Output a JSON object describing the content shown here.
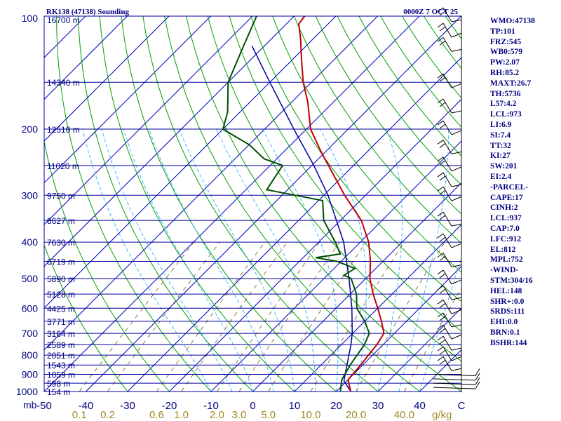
{
  "chart_data": {
    "type": "skew-t sounding",
    "title_left": "RK138 (47138) Sounding",
    "title_right": "0000Z  7 OCT 25",
    "units_label": "mb",
    "mixing_ratio_unit": "g/kg",
    "pressure_levels": [
      100,
      200,
      300,
      400,
      500,
      600,
      700,
      800,
      900,
      1000
    ],
    "pressure_range": [
      100,
      1000
    ],
    "temperature_ticks": [
      "-50",
      "-40",
      "-30",
      "-20",
      "-10",
      "0",
      "10",
      "20",
      "30",
      "40",
      "C"
    ],
    "temperature_range_at_1000mb": [
      -50,
      50
    ],
    "mixing_ratio_ticks": [
      "0.1",
      "0.2",
      "0.6",
      "1.0",
      "2.0",
      "3.0",
      "5.0",
      "10.0",
      "20.0",
      "40.0"
    ],
    "mixing_ratio_values": [
      0.1,
      0.2,
      0.6,
      1.0,
      2.0,
      3.0,
      5.0,
      10.0,
      20.0,
      40.0
    ],
    "heights": [
      {
        "label": "16700 m",
        "p": 100
      },
      {
        "label": "14340 m",
        "p": 150
      },
      {
        "label": "12510 m",
        "p": 200
      },
      {
        "label": "11020 m",
        "p": 250
      },
      {
        "label": "9750 m",
        "p": 300
      },
      {
        "label": "8627 m",
        "p": 350
      },
      {
        "label": "7630 m",
        "p": 400
      },
      {
        "label": "6719 m",
        "p": 450
      },
      {
        "label": "5890 m",
        "p": 500
      },
      {
        "label": "5128 m",
        "p": 550
      },
      {
        "label": "4425 m",
        "p": 600
      },
      {
        "label": "3771 m",
        "p": 650
      },
      {
        "label": "3164 m",
        "p": 700
      },
      {
        "label": "2589 m",
        "p": 750
      },
      {
        "label": "2051 m",
        "p": 800
      },
      {
        "label": "1543 m",
        "p": 850
      },
      {
        "label": "1059 m",
        "p": 900
      },
      {
        "label": "598 m",
        "p": 950
      },
      {
        "label": "154 m",
        "p": 1000
      }
    ],
    "temperature_profile": [
      {
        "p": 1000,
        "t": 23.5
      },
      {
        "p": 960,
        "t": 21.5
      },
      {
        "p": 930,
        "t": 20.0
      },
      {
        "p": 850,
        "t": 19.5
      },
      {
        "p": 800,
        "t": 19.0
      },
      {
        "p": 750,
        "t": 18.5
      },
      {
        "p": 700,
        "t": 17.5
      },
      {
        "p": 650,
        "t": 14.0
      },
      {
        "p": 600,
        "t": 10.0
      },
      {
        "p": 550,
        "t": 5.5
      },
      {
        "p": 500,
        "t": 1.0
      },
      {
        "p": 450,
        "t": -3.0
      },
      {
        "p": 400,
        "t": -8.0
      },
      {
        "p": 350,
        "t": -15.0
      },
      {
        "p": 300,
        "t": -25.0
      },
      {
        "p": 250,
        "t": -36.0
      },
      {
        "p": 230,
        "t": -41.0
      },
      {
        "p": 200,
        "t": -49.0
      },
      {
        "p": 170,
        "t": -56.0
      },
      {
        "p": 150,
        "t": -62.0
      },
      {
        "p": 130,
        "t": -68.0
      },
      {
        "p": 115,
        "t": -73.0
      },
      {
        "p": 105,
        "t": -77.0
      },
      {
        "p": 100,
        "t": -77.5
      }
    ],
    "dewpoint_profile": [
      {
        "p": 1000,
        "t": 21.0
      },
      {
        "p": 930,
        "t": 18.5
      },
      {
        "p": 850,
        "t": 17.0
      },
      {
        "p": 750,
        "t": 15.5
      },
      {
        "p": 700,
        "t": 14.0
      },
      {
        "p": 650,
        "t": 10.0
      },
      {
        "p": 600,
        "t": 5.0
      },
      {
        "p": 550,
        "t": 1.5
      },
      {
        "p": 500,
        "t": -3.5
      },
      {
        "p": 490,
        "t": -6.0
      },
      {
        "p": 470,
        "t": -5.0
      },
      {
        "p": 450,
        "t": -11.0
      },
      {
        "p": 440,
        "t": -17.0
      },
      {
        "p": 430,
        "t": -12.0
      },
      {
        "p": 400,
        "t": -16.0
      },
      {
        "p": 350,
        "t": -24.0
      },
      {
        "p": 310,
        "t": -29.0
      },
      {
        "p": 290,
        "t": -45.0
      },
      {
        "p": 250,
        "t": -47.0
      },
      {
        "p": 240,
        "t": -53.0
      },
      {
        "p": 220,
        "t": -60.0
      },
      {
        "p": 200,
        "t": -70.0
      },
      {
        "p": 180,
        "t": -73.0
      },
      {
        "p": 150,
        "t": -80.0
      },
      {
        "p": 120,
        "t": -85.0
      },
      {
        "p": 100,
        "t": -89.0
      }
    ],
    "parcel_profile": [
      {
        "p": 1000,
        "t": 23.5
      },
      {
        "p": 937,
        "t": 19.3
      },
      {
        "p": 850,
        "t": 16.2
      },
      {
        "p": 750,
        "t": 12.3
      },
      {
        "p": 700,
        "t": 9.9
      },
      {
        "p": 600,
        "t": 3.8
      },
      {
        "p": 500,
        "t": -4.0
      },
      {
        "p": 400,
        "t": -14.0
      },
      {
        "p": 300,
        "t": -29.0
      },
      {
        "p": 250,
        "t": -39.5
      },
      {
        "p": 200,
        "t": -53.0
      },
      {
        "p": 150,
        "t": -70.0
      },
      {
        "p": 120,
        "t": -83.0
      }
    ],
    "wind_barbs": [
      {
        "p": 100
      },
      {
        "p": 110
      },
      {
        "p": 120
      },
      {
        "p": 150
      },
      {
        "p": 175
      },
      {
        "p": 200
      },
      {
        "p": 225
      },
      {
        "p": 250
      },
      {
        "p": 275
      },
      {
        "p": 300
      },
      {
        "p": 350
      },
      {
        "p": 400
      },
      {
        "p": 450
      },
      {
        "p": 500
      },
      {
        "p": 550
      },
      {
        "p": 600
      },
      {
        "p": 650
      },
      {
        "p": 700
      },
      {
        "p": 750
      },
      {
        "p": 800
      },
      {
        "p": 850
      },
      {
        "p": 900
      },
      {
        "p": 925
      },
      {
        "p": 950
      },
      {
        "p": 975
      }
    ],
    "indices": [
      "WMO:47138",
      "TP:101",
      "FRZ:545",
      "WB0:579",
      "PW:2.07",
      "RH:85.2",
      "MAXT:26.7",
      "TH:5736",
      "L57:4.2",
      "LCL:973",
      "LI:6.9",
      "SI:7.4",
      "TT:32",
      "KI:27",
      "SW:201",
      "EI:2.4",
      "-PARCEL-",
      "CAPE:17",
      "CINH:2",
      "LCL:937",
      "CAP:7.0",
      "LFC:912",
      "EL:812",
      "MPL:752",
      "-WIND-",
      "STM:304/16",
      "HEL:148",
      "SHR+:0.0",
      "SRDS:111",
      "EHI:0.0",
      "BRN:0.1",
      "BSHR:144"
    ],
    "colors": {
      "isobar": "#0000a0",
      "isotherm": "#0000c0",
      "dry_adiabat": "#00a000",
      "moist_adiabat": "#40b8ff",
      "mixing_ratio": "#8a7a3a",
      "temperature": "#c00000",
      "dewpoint": "#005000",
      "parcel": "#0000a0",
      "wind": "#000000",
      "labels": "#000080"
    }
  }
}
